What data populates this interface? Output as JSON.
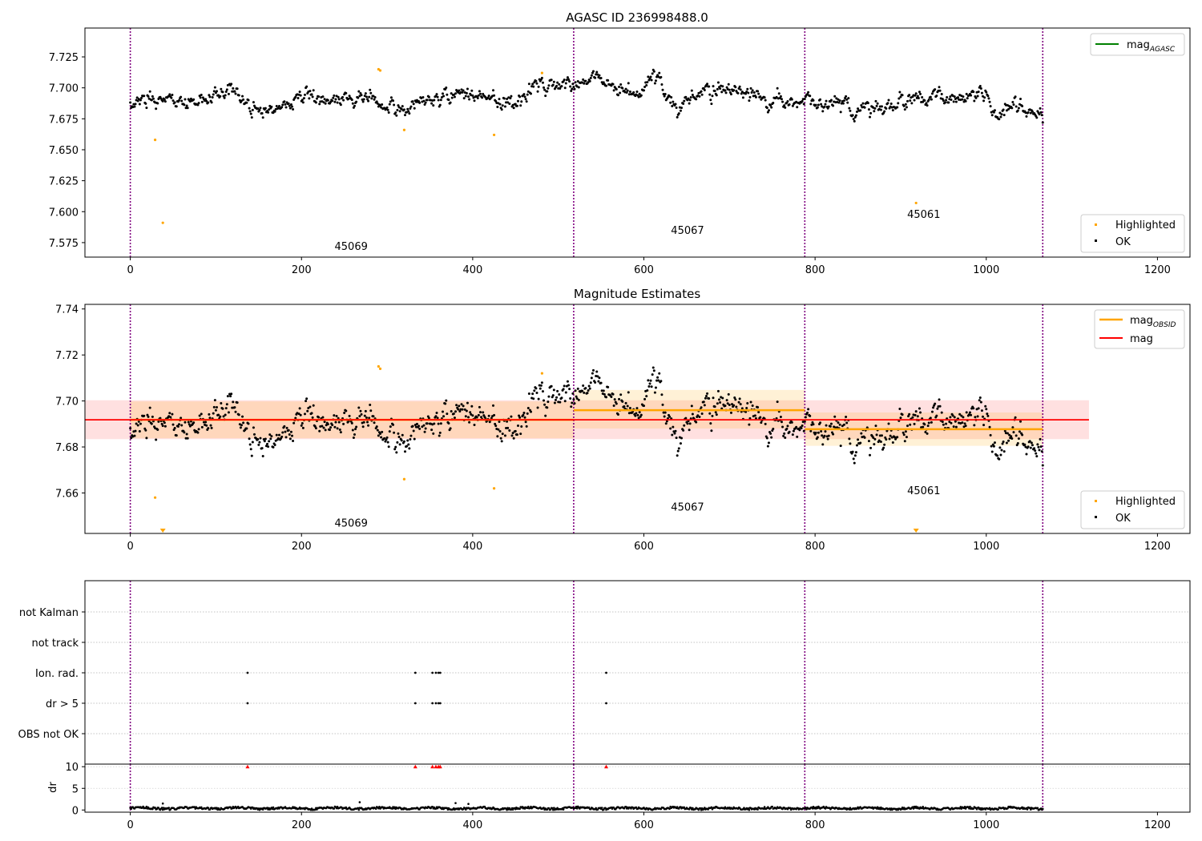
{
  "chart_data": [
    {
      "type": "scatter",
      "title": "AGASC ID 236998488.0",
      "xlabel": "",
      "ylabel": "",
      "xlim": [
        -53,
        1238
      ],
      "ylim": [
        7.5633,
        7.7483
      ],
      "x_ticks": [
        0,
        200,
        400,
        600,
        800,
        1000,
        1200
      ],
      "x_tick_labels": [
        "0",
        "200",
        "400",
        "600",
        "800",
        "1000",
        "1200"
      ],
      "y_ticks": [
        7.575,
        7.6,
        7.625,
        7.65,
        7.675,
        7.7,
        7.725
      ],
      "y_tick_labels": [
        "7.575",
        "7.600",
        "7.625",
        "7.650",
        "7.675",
        "7.700",
        "7.725"
      ],
      "obsid_boundaries": [
        0,
        518,
        788,
        1066
      ],
      "obsid_labels": [
        {
          "text": "45069",
          "x": 258,
          "y": 7.569
        },
        {
          "text": "45067",
          "x": 651,
          "y": 7.582
        },
        {
          "text": "45061",
          "x": 927,
          "y": 7.595
        }
      ],
      "legend_upper": {
        "placement": "upper right",
        "entries": [
          {
            "label": "mag",
            "subscript": "AGASC",
            "color": "#008000"
          }
        ]
      },
      "legend_lower": {
        "placement": "lower right",
        "entries": [
          {
            "label": "Highlighted",
            "color": "#ffa500"
          },
          {
            "label": "OK",
            "color": "#000000"
          }
        ]
      },
      "series": [
        {
          "name": "OK",
          "color": "#000000",
          "segments": [
            {
              "x_start": 0,
              "x_end": 517,
              "anchors": [
                [
                  0,
                  7.691
                ],
                [
                  40,
                  7.69
                ],
                [
                  80,
                  7.688
                ],
                [
                  120,
                  7.697
                ],
                [
                  150,
                  7.68
                ],
                [
                  200,
                  7.693
                ],
                [
                  240,
                  7.69
                ],
                [
                  280,
                  7.692
                ],
                [
                  310,
                  7.68
                ],
                [
                  340,
                  7.688
                ],
                [
                  380,
                  7.693
                ],
                [
                  420,
                  7.692
                ],
                [
                  450,
                  7.688
                ],
                [
                  470,
                  7.702
                ],
                [
                  517,
                  7.702
                ]
              ],
              "noise": 0.005
            },
            {
              "x_start": 518,
              "x_end": 787,
              "anchors": [
                [
                  518,
                  7.702
                ],
                [
                  540,
                  7.707
                ],
                [
                  560,
                  7.702
                ],
                [
                  590,
                  7.694
                ],
                [
                  615,
                  7.708
                ],
                [
                  640,
                  7.684
                ],
                [
                  670,
                  7.7
                ],
                [
                  710,
                  7.697
                ],
                [
                  740,
                  7.693
                ],
                [
                  787,
                  7.686
                ]
              ],
              "noise": 0.005
            },
            {
              "x_start": 788,
              "x_end": 1066,
              "anchors": [
                [
                  788,
                  7.69
                ],
                [
                  820,
                  7.688
                ],
                [
                  860,
                  7.682
                ],
                [
                  880,
                  7.683
                ],
                [
                  920,
                  7.691
                ],
                [
                  960,
                  7.692
                ],
                [
                  990,
                  7.698
                ],
                [
                  1010,
                  7.685
                ],
                [
                  1040,
                  7.684
                ],
                [
                  1066,
                  7.678
                ]
              ],
              "noise": 0.005
            }
          ]
        },
        {
          "name": "Highlighted",
          "color": "#ffa500",
          "points": [
            [
              29,
              7.658
            ],
            [
              38,
              7.591
            ],
            [
              290,
              7.715
            ],
            [
              292,
              7.714
            ],
            [
              320,
              7.666
            ],
            [
              425,
              7.662
            ],
            [
              481,
              7.712
            ],
            [
              918,
              7.607
            ]
          ]
        }
      ]
    },
    {
      "type": "scatter",
      "title": "Magnitude Estimates",
      "xlabel": "",
      "ylabel": "",
      "xlim": [
        -53,
        1238
      ],
      "ylim": [
        7.6424,
        7.742
      ],
      "x_ticks": [
        0,
        200,
        400,
        600,
        800,
        1000,
        1200
      ],
      "x_tick_labels": [
        "0",
        "200",
        "400",
        "600",
        "800",
        "1000",
        "1200"
      ],
      "y_ticks": [
        7.66,
        7.68,
        7.7,
        7.72,
        7.74
      ],
      "y_tick_labels": [
        "7.66",
        "7.68",
        "7.70",
        "7.72",
        "7.74"
      ],
      "obsid_boundaries": [
        0,
        518,
        788,
        1066
      ],
      "obsid_labels": [
        {
          "text": "45069",
          "x": 258,
          "y": 7.6454
        },
        {
          "text": "45067",
          "x": 651,
          "y": 7.6524
        },
        {
          "text": "45061",
          "x": 927,
          "y": 7.6594
        }
      ],
      "legend_upper": {
        "placement": "upper right",
        "entries": [
          {
            "label": "mag",
            "subscript": "OBSID",
            "color": "#ffa500"
          },
          {
            "label": "mag",
            "color": "#ff0000"
          }
        ]
      },
      "legend_lower": {
        "placement": "lower right",
        "entries": [
          {
            "label": "Highlighted",
            "color": "#ffa500"
          },
          {
            "label": "OK",
            "color": "#000000"
          }
        ]
      },
      "mag_line": {
        "y": 7.6918,
        "x_range": [
          -53,
          1120
        ],
        "band": [
          7.6834,
          7.7003
        ],
        "color": "#ff0000"
      },
      "obsid_mags": [
        {
          "x_range": [
            0,
            518
          ],
          "y": 7.6918,
          "band": [
            7.6838,
            7.6998
          ]
        },
        {
          "x_range": [
            518,
            788
          ],
          "y": 7.696,
          "band": [
            7.688,
            7.7048
          ]
        },
        {
          "x_range": [
            788,
            1066
          ],
          "y": 7.6877,
          "band": [
            7.6805,
            7.695
          ]
        }
      ],
      "series": [
        {
          "name": "OK",
          "color": "#000000",
          "same_as_panel": 0
        },
        {
          "name": "Highlighted",
          "color": "#ffa500",
          "points": [
            [
              29,
              7.658
            ],
            [
              290,
              7.715
            ],
            [
              292,
              7.714
            ],
            [
              320,
              7.666
            ],
            [
              425,
              7.662
            ],
            [
              481,
              7.712
            ]
          ],
          "off_scale_markers": [
            38,
            918
          ]
        }
      ]
    },
    {
      "type": "scatter",
      "title": "",
      "xlabel": "",
      "ylabel": "",
      "xlim": [
        -53,
        1238
      ],
      "categories": [
        "not Kalman",
        "not track",
        "Ion. rad.",
        "dr > 5",
        "OBS not OK"
      ],
      "obsid_boundaries": [
        0,
        518,
        788,
        1066
      ],
      "flags": {
        "Ion. rad.": [
          137,
          333,
          353,
          357,
          360,
          362,
          556
        ],
        "dr > 5": [
          137,
          333,
          353,
          357,
          360,
          362,
          556
        ]
      }
    },
    {
      "type": "scatter",
      "title": "",
      "xlabel": "",
      "ylabel": "dr",
      "xlim": [
        -53,
        1238
      ],
      "ylim": [
        -0.5,
        10.6
      ],
      "y_ticks": [
        0,
        5,
        10
      ],
      "y_tick_labels": [
        "0",
        "5",
        "10"
      ],
      "x_ticks": [
        0,
        200,
        400,
        600,
        800,
        1000,
        1200
      ],
      "x_tick_labels": [
        "0",
        "200",
        "400",
        "600",
        "800",
        "1000",
        "1200"
      ],
      "obsid_boundaries": [
        0,
        518,
        788,
        1066
      ],
      "series": [
        {
          "name": "dr",
          "color": "#000000",
          "x_range": [
            0,
            1066
          ],
          "typical": 0.4,
          "spread": 0.5,
          "outliers": [
            [
              38,
              1.5
            ],
            [
              268,
              1.8
            ],
            [
              380,
              1.6
            ],
            [
              395,
              1.4
            ]
          ]
        },
        {
          "name": "dr > 10",
          "color": "#ff0000",
          "marker": "triangle-up",
          "points": [
            [
              137,
              10
            ],
            [
              333,
              10
            ],
            [
              353,
              10
            ],
            [
              357,
              10
            ],
            [
              360,
              10
            ],
            [
              362,
              10
            ],
            [
              556,
              10
            ]
          ]
        }
      ]
    }
  ]
}
